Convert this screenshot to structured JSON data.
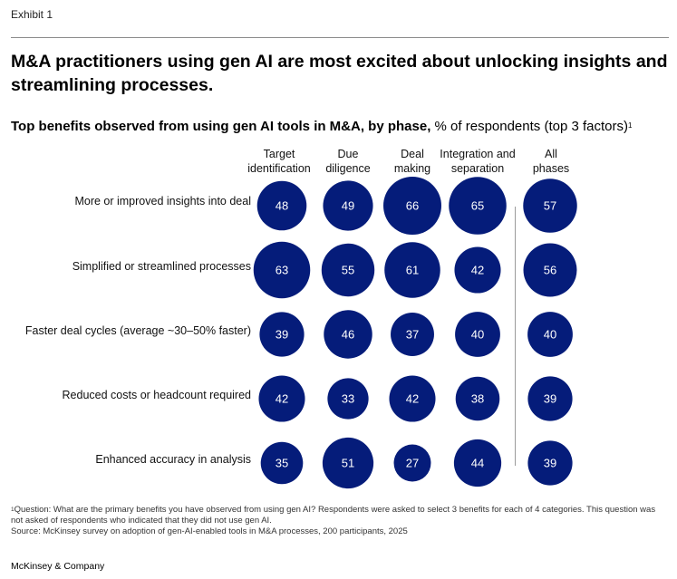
{
  "exhibit_label": "Exhibit 1",
  "headline": "M&A practitioners using gen AI are most excited about unlocking insights and streamlining processes.",
  "subtitle_bold": "Top benefits observed from using gen AI tools in M&A, by phase,",
  "subtitle_rest": "% of respondents (top 3 factors)",
  "subtitle_note_marker": "1",
  "colors": {
    "bubble": "#051c7a",
    "bubble_text": "#ffffff",
    "divider": "#9b9b9b"
  },
  "chart_data": {
    "type": "bubble-matrix",
    "title": "Top benefits observed from using gen AI tools in M&A, by phase",
    "unit": "% of respondents (top 3 factors)",
    "columns": [
      {
        "line1": "Target",
        "line2": "identification"
      },
      {
        "line1": "Due",
        "line2": "diligence"
      },
      {
        "line1": "Deal",
        "line2": "making"
      },
      {
        "line1": "Integration and",
        "line2": "separation"
      },
      {
        "line1": "All",
        "line2": "phases"
      }
    ],
    "rows": [
      "More or improved insights into deal",
      "Simplified or streamlined processes",
      "Faster deal cycles (average ~30–50% faster)",
      "Reduced costs or headcount required",
      "Enhanced accuracy in analysis"
    ],
    "values": [
      [
        48,
        49,
        66,
        65,
        57
      ],
      [
        63,
        55,
        61,
        42,
        56
      ],
      [
        39,
        46,
        37,
        40,
        40
      ],
      [
        42,
        33,
        42,
        38,
        39
      ],
      [
        35,
        51,
        27,
        44,
        39
      ]
    ]
  },
  "footnote": {
    "marker": "1",
    "question": "Question: What are the primary benefits you have observed from using gen AI? Respondents were asked to select 3 benefits for each of 4 categories. This question was not asked of respondents who indicated that they did not use gen AI.",
    "source": "Source: McKinsey survey on adoption of gen-AI-enabled tools in M&A processes, 200 participants, 2025"
  },
  "brand": "McKinsey & Company"
}
